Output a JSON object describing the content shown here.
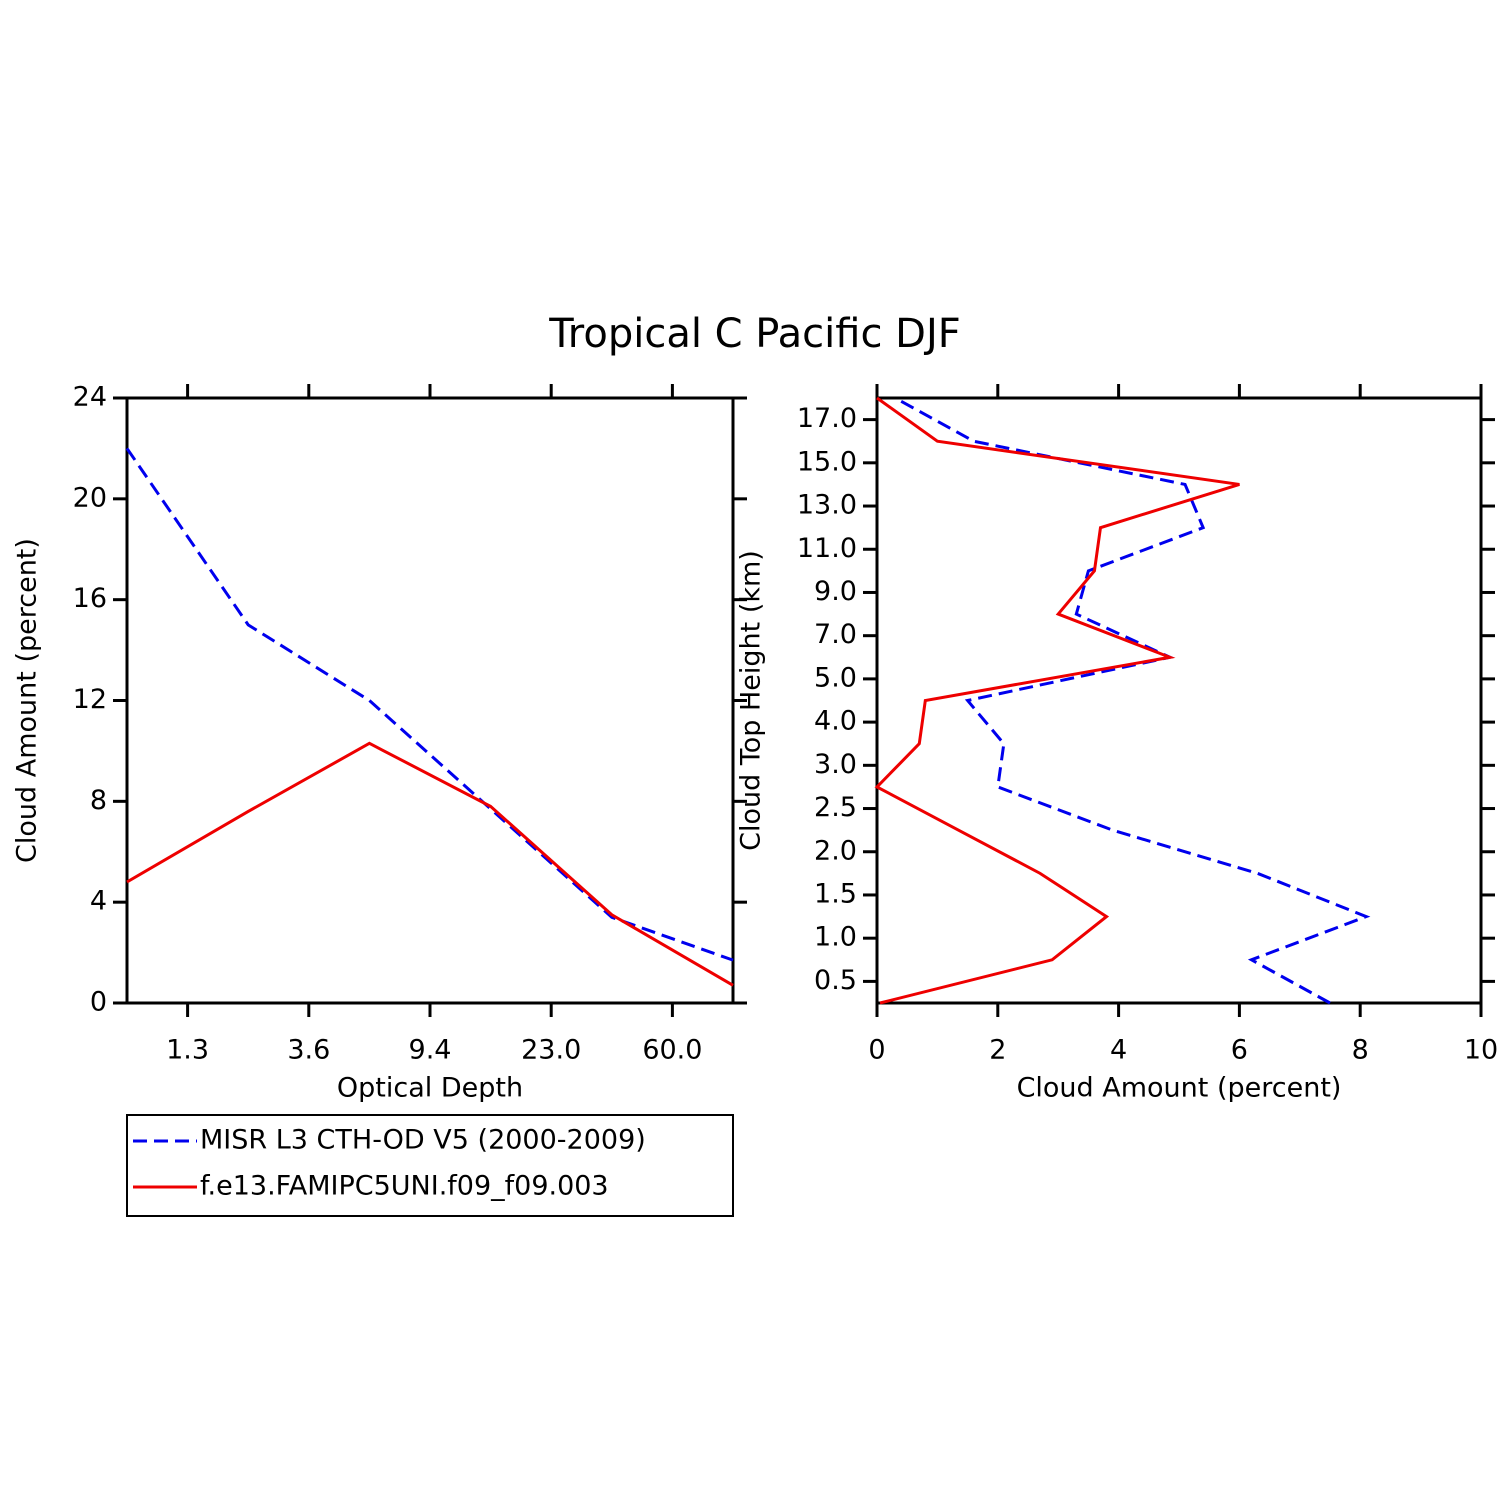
{
  "title": "Tropical C Pacific DJF",
  "chart_data": [
    {
      "type": "line",
      "xlabel": "Optical Depth",
      "ylabel": "Cloud Amount (percent)",
      "xlim": [
        0,
        5
      ],
      "xticks": [
        {
          "value": 0.5,
          "label": "1.3"
        },
        {
          "value": 1.5,
          "label": "3.6"
        },
        {
          "value": 2.5,
          "label": "9.4"
        },
        {
          "value": 3.5,
          "label": "23.0"
        },
        {
          "value": 4.5,
          "label": "60.0"
        }
      ],
      "ylim": [
        0,
        24
      ],
      "yticks": [
        0,
        4,
        8,
        12,
        16,
        20,
        24
      ],
      "legend": "below",
      "series": [
        {
          "name": "MISR L3 CTH-OD V5 (2000-2009)",
          "color": "#0000ee",
          "line_style": "dashed",
          "values": [
            22.0,
            15.0,
            12.0,
            7.7,
            3.4,
            1.7
          ]
        },
        {
          "name": "f.e13.FAMIPC5UNI.f09_f09.003",
          "color": "#ee0000",
          "line_style": "solid",
          "values": [
            4.8,
            7.6,
            10.3,
            7.8,
            3.5,
            0.7
          ]
        }
      ]
    },
    {
      "type": "line",
      "orientation": "horizontal",
      "xlabel": "Cloud Amount (percent)",
      "ylabel": "Cloud Top Height (km)",
      "xlim": [
        0,
        10
      ],
      "xticks": [
        0,
        2,
        4,
        6,
        8,
        10
      ],
      "ylim": [
        0,
        14
      ],
      "yticks": [
        {
          "value": 0.5,
          "label": "0.5"
        },
        {
          "value": 1.5,
          "label": "1.0"
        },
        {
          "value": 2.5,
          "label": "1.5"
        },
        {
          "value": 3.5,
          "label": "2.0"
        },
        {
          "value": 4.5,
          "label": "2.5"
        },
        {
          "value": 5.5,
          "label": "3.0"
        },
        {
          "value": 6.5,
          "label": "4.0"
        },
        {
          "value": 7.5,
          "label": "5.0"
        },
        {
          "value": 8.5,
          "label": "7.0"
        },
        {
          "value": 9.5,
          "label": "9.0"
        },
        {
          "value": 10.5,
          "label": "11.0"
        },
        {
          "value": 11.5,
          "label": "13.0"
        },
        {
          "value": 12.5,
          "label": "15.0"
        },
        {
          "value": 13.5,
          "label": "17.0"
        }
      ],
      "series": [
        {
          "color": "#0000ee",
          "line_style": "dashed",
          "values": [
            7.5,
            6.2,
            8.1,
            6.3,
            3.9,
            2.0,
            2.1,
            1.5,
            4.85,
            3.3,
            3.5,
            5.4,
            5.1,
            1.6,
            0.3
          ]
        },
        {
          "color": "#ee0000",
          "line_style": "solid",
          "values": [
            0.05,
            2.9,
            3.8,
            2.7,
            1.35,
            0.0,
            0.7,
            0.8,
            4.85,
            3.0,
            3.6,
            3.7,
            6.0,
            1.0,
            0.0
          ]
        }
      ]
    }
  ]
}
